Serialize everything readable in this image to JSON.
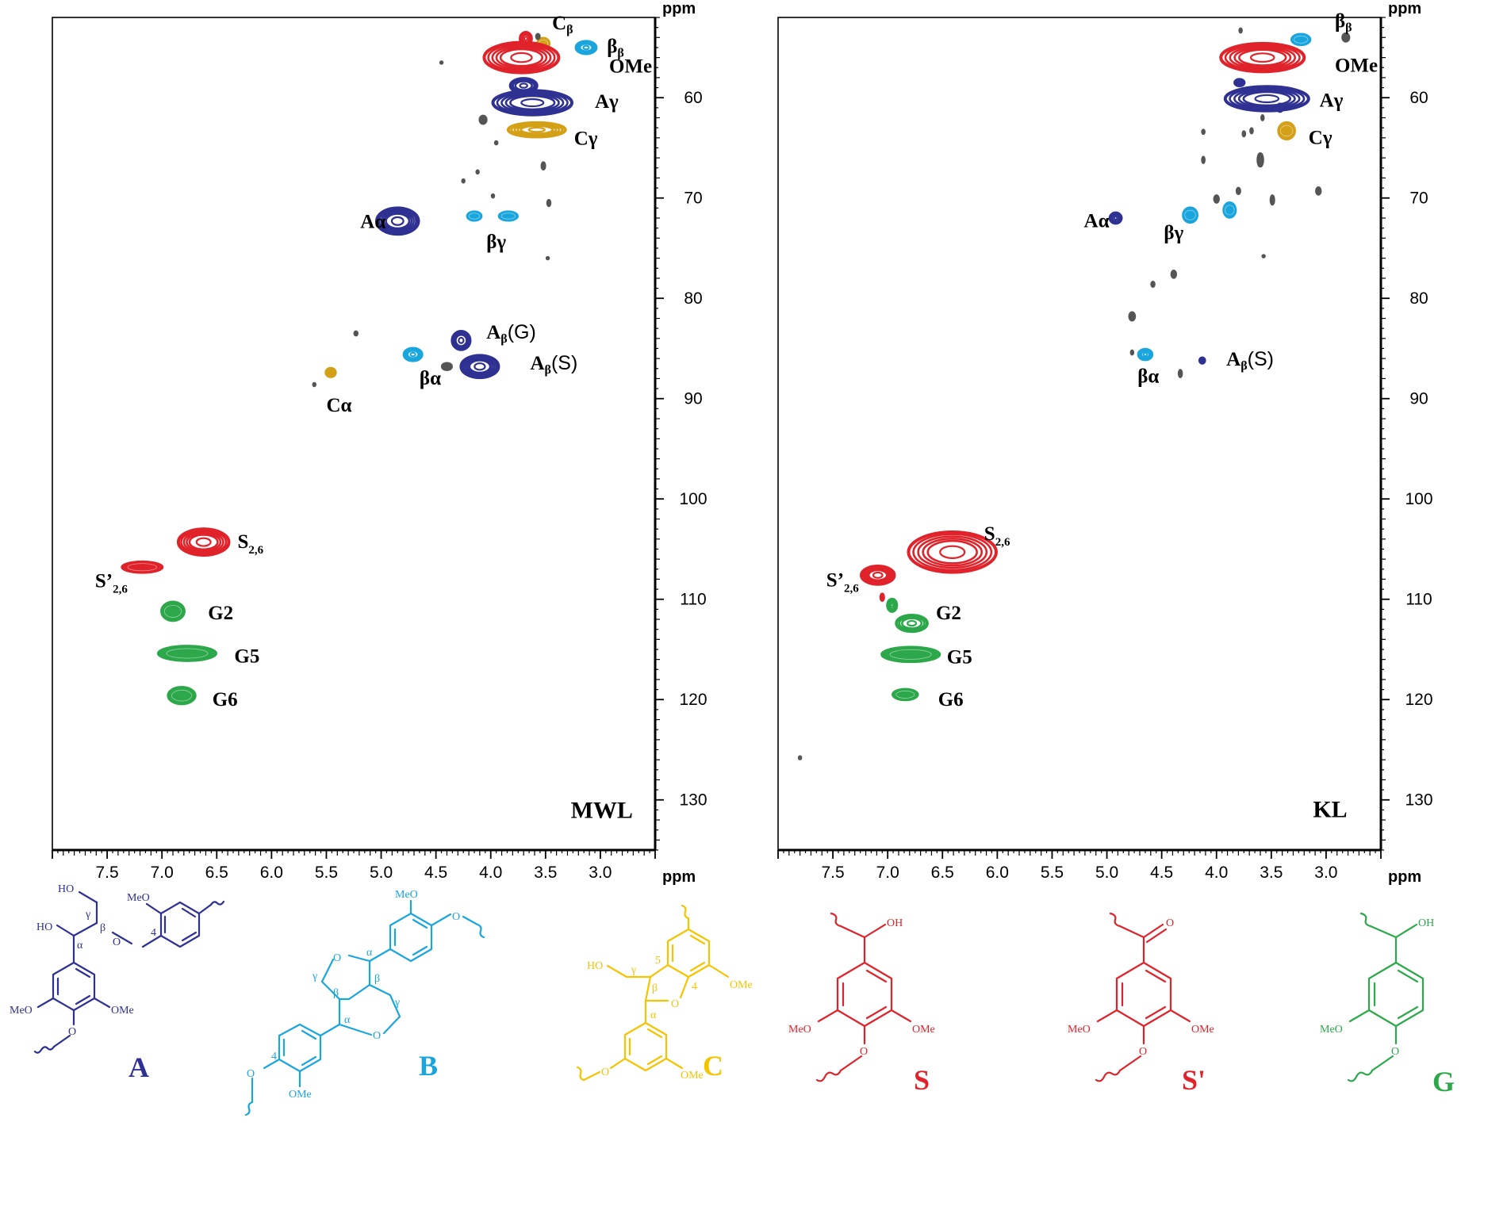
{
  "colors": {
    "A": "#2e3192",
    "B": "#1aa6dd",
    "C": "#d4a017",
    "C_struct": "#f5c400",
    "S": "#e0232b",
    "G": "#2ca84a",
    "other": "#555555"
  },
  "chart_data": [
    {
      "type": "scatter",
      "title": "MWL",
      "xlabel": "ppm",
      "ylabel": "ppm",
      "xlim": [
        8.0,
        2.5
      ],
      "ylim": [
        52,
        135
      ],
      "x_ticks": [
        "7.5",
        "7.0",
        "6.5",
        "6.0",
        "5.5",
        "5.0",
        "4.5",
        "4.0",
        "3.5",
        "3.0"
      ],
      "y_ticks": [
        "60",
        "70",
        "80",
        "90",
        "100",
        "110",
        "120",
        "130"
      ],
      "series": [
        {
          "name": "A",
          "color_key": "A",
          "points": [
            {
              "x": 4.85,
              "y": 72.3,
              "rx": 0.19,
              "ry": 1.3,
              "filled": false
            },
            {
              "x": 4.27,
              "y": 84.2,
              "rx": 0.08,
              "ry": 0.9,
              "filled": false
            },
            {
              "x": 4.1,
              "y": 86.8,
              "rx": 0.17,
              "ry": 1.1,
              "filled": false
            },
            {
              "x": 3.7,
              "y": 58.8,
              "rx": 0.12,
              "ry": 0.7,
              "filled": false
            },
            {
              "x": 3.62,
              "y": 60.5,
              "rx": 0.36,
              "ry": 1.2,
              "filled": false
            }
          ]
        },
        {
          "name": "B",
          "color_key": "B",
          "points": [
            {
              "x": 4.71,
              "y": 85.6,
              "rx": 0.08,
              "ry": 0.6,
              "filled": false
            },
            {
              "x": 4.15,
              "y": 71.8,
              "rx": 0.07,
              "ry": 0.5,
              "filled": true
            },
            {
              "x": 3.84,
              "y": 71.8,
              "rx": 0.09,
              "ry": 0.5,
              "filled": true
            },
            {
              "x": 3.13,
              "y": 55.0,
              "rx": 0.09,
              "ry": 0.6,
              "filled": false
            }
          ]
        },
        {
          "name": "C",
          "color_key": "C",
          "points": [
            {
              "x": 5.46,
              "y": 87.4,
              "rx": 0.05,
              "ry": 0.5,
              "filled": true
            },
            {
              "x": 3.52,
              "y": 54.6,
              "rx": 0.06,
              "ry": 0.6,
              "filled": true
            },
            {
              "x": 3.58,
              "y": 63.2,
              "rx": 0.26,
              "ry": 0.7,
              "filled": false
            }
          ]
        },
        {
          "name": "OMe",
          "color_key": "S",
          "points": [
            {
              "x": 3.72,
              "y": 56.0,
              "rx": 0.34,
              "ry": 1.5,
              "filled": false
            },
            {
              "x": 3.68,
              "y": 54.1,
              "rx": 0.05,
              "ry": 0.6,
              "filled": false
            }
          ]
        },
        {
          "name": "S",
          "color_key": "S",
          "points": [
            {
              "x": 6.62,
              "y": 104.3,
              "rx": 0.23,
              "ry": 1.3,
              "filled": false
            },
            {
              "x": 7.18,
              "y": 106.8,
              "rx": 0.19,
              "ry": 0.6,
              "filled": true
            }
          ]
        },
        {
          "name": "G",
          "color_key": "G",
          "points": [
            {
              "x": 6.9,
              "y": 111.2,
              "rx": 0.11,
              "ry": 1.0,
              "filled": true
            },
            {
              "x": 6.77,
              "y": 115.4,
              "rx": 0.27,
              "ry": 0.8,
              "filled": true
            },
            {
              "x": 6.82,
              "y": 119.6,
              "rx": 0.13,
              "ry": 0.9,
              "filled": true
            }
          ]
        },
        {
          "name": "other",
          "color_key": "other",
          "points": [
            {
              "x": 4.45,
              "y": 56.5,
              "rx": 0.012,
              "ry": 0.15,
              "filled": true
            },
            {
              "x": 4.07,
              "y": 62.2,
              "rx": 0.035,
              "ry": 0.45,
              "filled": true
            },
            {
              "x": 3.57,
              "y": 53.9,
              "rx": 0.02,
              "ry": 0.3,
              "filled": true
            },
            {
              "x": 3.95,
              "y": 64.5,
              "rx": 0.015,
              "ry": 0.2,
              "filled": true
            },
            {
              "x": 3.52,
              "y": 66.8,
              "rx": 0.02,
              "ry": 0.4,
              "filled": true
            },
            {
              "x": 4.12,
              "y": 67.4,
              "rx": 0.012,
              "ry": 0.2,
              "filled": true
            },
            {
              "x": 4.25,
              "y": 68.3,
              "rx": 0.012,
              "ry": 0.2,
              "filled": true
            },
            {
              "x": 3.98,
              "y": 69.8,
              "rx": 0.012,
              "ry": 0.2,
              "filled": true
            },
            {
              "x": 3.47,
              "y": 70.5,
              "rx": 0.018,
              "ry": 0.35,
              "filled": true
            },
            {
              "x": 3.48,
              "y": 76.0,
              "rx": 0.01,
              "ry": 0.15,
              "filled": true
            },
            {
              "x": 5.23,
              "y": 83.5,
              "rx": 0.018,
              "ry": 0.25,
              "filled": true
            },
            {
              "x": 4.4,
              "y": 86.8,
              "rx": 0.04,
              "ry": 0.3,
              "filled": false
            },
            {
              "x": 5.61,
              "y": 88.6,
              "rx": 0.012,
              "ry": 0.2,
              "filled": true
            }
          ]
        }
      ],
      "annotations": [
        {
          "text": "Cβ",
          "x": 3.44,
          "y": 53.2
        },
        {
          "text": "ββ",
          "x": 2.94,
          "y": 55.5
        },
        {
          "text": "OMe",
          "x": 2.92,
          "y": 57.5
        },
        {
          "text": "Aγ",
          "x": 3.05,
          "y": 61.0
        },
        {
          "text": "Cγ",
          "x": 3.24,
          "y": 64.7
        },
        {
          "text": "Aα",
          "x": 5.19,
          "y": 73.0
        },
        {
          "text": "βγ",
          "x": 4.04,
          "y": 75.0
        },
        {
          "text": "Aβ(G)",
          "x": 4.04,
          "y": 84.0
        },
        {
          "text": "Aβ(S)",
          "x": 3.64,
          "y": 87.1
        },
        {
          "text": "βα",
          "x": 4.65,
          "y": 88.6
        },
        {
          "text": "Cα",
          "x": 5.5,
          "y": 91.3
        },
        {
          "text": "S2,6",
          "x": 6.31,
          "y": 104.9
        },
        {
          "text": "S’2,6",
          "x": 7.61,
          "y": 108.8
        },
        {
          "text": "G2",
          "x": 6.58,
          "y": 112.0
        },
        {
          "text": "G5",
          "x": 6.34,
          "y": 116.3
        },
        {
          "text": "G6",
          "x": 6.54,
          "y": 120.6
        },
        {
          "text": "MWL",
          "x": 3.27,
          "y": 131.8
        }
      ]
    },
    {
      "type": "scatter",
      "title": "KL",
      "xlabel": "ppm",
      "ylabel": "ppm",
      "xlim": [
        8.0,
        2.5
      ],
      "ylim": [
        52,
        135
      ],
      "x_ticks": [
        "7.5",
        "7.0",
        "6.5",
        "6.0",
        "5.5",
        "5.0",
        "4.5",
        "4.0",
        "3.5",
        "3.0"
      ],
      "y_ticks": [
        "60",
        "70",
        "80",
        "90",
        "100",
        "110",
        "120",
        "130"
      ],
      "series": [
        {
          "name": "A",
          "color_key": "A",
          "points": [
            {
              "x": 4.92,
              "y": 72.0,
              "rx": 0.05,
              "ry": 0.5,
              "filled": false
            },
            {
              "x": 4.13,
              "y": 86.2,
              "rx": 0.03,
              "ry": 0.35,
              "filled": true
            },
            {
              "x": 3.79,
              "y": 58.5,
              "rx": 0.05,
              "ry": 0.4,
              "filled": true
            },
            {
              "x": 3.54,
              "y": 60.1,
              "rx": 0.38,
              "ry": 1.2,
              "filled": false
            },
            {
              "x": 3.42,
              "y": 61.0,
              "rx": 0.03,
              "ry": 0.45,
              "filled": true
            }
          ]
        },
        {
          "name": "B",
          "color_key": "B",
          "points": [
            {
              "x": 4.65,
              "y": 85.6,
              "rx": 0.06,
              "ry": 0.5,
              "filled": false
            },
            {
              "x": 4.24,
              "y": 71.7,
              "rx": 0.07,
              "ry": 0.8,
              "filled": true
            },
            {
              "x": 3.88,
              "y": 71.2,
              "rx": 0.06,
              "ry": 0.8,
              "filled": true
            },
            {
              "x": 3.23,
              "y": 54.2,
              "rx": 0.09,
              "ry": 0.6,
              "filled": true
            }
          ]
        },
        {
          "name": "C",
          "color_key": "C",
          "points": [
            {
              "x": 3.36,
              "y": 63.3,
              "rx": 0.08,
              "ry": 0.9,
              "filled": true
            }
          ]
        },
        {
          "name": "OMe",
          "color_key": "S",
          "points": [
            {
              "x": 3.58,
              "y": 56.0,
              "rx": 0.38,
              "ry": 1.4,
              "filled": false
            }
          ]
        },
        {
          "name": "S",
          "color_key": "S",
          "points": [
            {
              "x": 6.41,
              "y": 105.3,
              "rx": 0.4,
              "ry": 2.0,
              "filled": false
            },
            {
              "x": 7.09,
              "y": 107.6,
              "rx": 0.15,
              "ry": 0.9,
              "filled": false
            },
            {
              "x": 7.05,
              "y": 109.8,
              "rx": 0.02,
              "ry": 0.4,
              "filled": true
            }
          ]
        },
        {
          "name": "G",
          "color_key": "G",
          "points": [
            {
              "x": 6.96,
              "y": 110.6,
              "rx": 0.04,
              "ry": 0.6,
              "filled": false
            },
            {
              "x": 6.78,
              "y": 112.4,
              "rx": 0.14,
              "ry": 0.8,
              "filled": false
            },
            {
              "x": 6.79,
              "y": 115.5,
              "rx": 0.27,
              "ry": 0.8,
              "filled": true
            },
            {
              "x": 6.84,
              "y": 119.5,
              "rx": 0.12,
              "ry": 0.6,
              "filled": true
            }
          ]
        },
        {
          "name": "other",
          "color_key": "other",
          "points": [
            {
              "x": 3.78,
              "y": 53.3,
              "rx": 0.012,
              "ry": 0.25,
              "filled": true
            },
            {
              "x": 2.82,
              "y": 54.0,
              "rx": 0.035,
              "ry": 0.45,
              "filled": true
            },
            {
              "x": 3.58,
              "y": 62.0,
              "rx": 0.012,
              "ry": 0.3,
              "filled": true
            },
            {
              "x": 3.68,
              "y": 63.3,
              "rx": 0.015,
              "ry": 0.3,
              "filled": true
            },
            {
              "x": 3.75,
              "y": 63.6,
              "rx": 0.015,
              "ry": 0.3,
              "filled": true
            },
            {
              "x": 4.12,
              "y": 63.4,
              "rx": 0.015,
              "ry": 0.25,
              "filled": true
            },
            {
              "x": 3.6,
              "y": 66.2,
              "rx": 0.02,
              "ry": 0.6,
              "filled": false
            },
            {
              "x": 4.12,
              "y": 66.2,
              "rx": 0.015,
              "ry": 0.35,
              "filled": true
            },
            {
              "x": 3.07,
              "y": 69.3,
              "rx": 0.025,
              "ry": 0.4,
              "filled": true
            },
            {
              "x": 3.8,
              "y": 69.3,
              "rx": 0.02,
              "ry": 0.35,
              "filled": true
            },
            {
              "x": 4.0,
              "y": 70.1,
              "rx": 0.025,
              "ry": 0.4,
              "filled": true
            },
            {
              "x": 3.49,
              "y": 70.2,
              "rx": 0.02,
              "ry": 0.5,
              "filled": true
            },
            {
              "x": 3.57,
              "y": 75.8,
              "rx": 0.008,
              "ry": 0.15,
              "filled": true
            },
            {
              "x": 4.39,
              "y": 77.6,
              "rx": 0.025,
              "ry": 0.4,
              "filled": true
            },
            {
              "x": 4.58,
              "y": 78.6,
              "rx": 0.018,
              "ry": 0.3,
              "filled": true
            },
            {
              "x": 4.77,
              "y": 81.8,
              "rx": 0.03,
              "ry": 0.45,
              "filled": true
            },
            {
              "x": 4.77,
              "y": 85.4,
              "rx": 0.012,
              "ry": 0.25,
              "filled": true
            },
            {
              "x": 4.33,
              "y": 87.5,
              "rx": 0.018,
              "ry": 0.4,
              "filled": true
            },
            {
              "x": 7.8,
              "y": 125.8,
              "rx": 0.012,
              "ry": 0.2,
              "filled": true
            }
          ]
        }
      ],
      "annotations": [
        {
          "text": "ββ",
          "x": 2.92,
          "y": 53.0
        },
        {
          "text": "OMe",
          "x": 2.92,
          "y": 57.4
        },
        {
          "text": "Aγ",
          "x": 3.06,
          "y": 60.9
        },
        {
          "text": "Cγ",
          "x": 3.16,
          "y": 64.6
        },
        {
          "text": "Aα",
          "x": 5.21,
          "y": 72.9
        },
        {
          "text": "βγ",
          "x": 4.48,
          "y": 74.1
        },
        {
          "text": "Aβ(S)",
          "x": 3.91,
          "y": 86.7
        },
        {
          "text": "βα",
          "x": 4.72,
          "y": 88.4
        },
        {
          "text": "S2,6",
          "x": 6.12,
          "y": 104.1
        },
        {
          "text": "S’2,6",
          "x": 7.56,
          "y": 108.7
        },
        {
          "text": "G2",
          "x": 6.56,
          "y": 112.0
        },
        {
          "text": "G5",
          "x": 6.46,
          "y": 116.4
        },
        {
          "text": "G6",
          "x": 6.54,
          "y": 120.6
        },
        {
          "text": "KL",
          "x": 3.12,
          "y": 131.7
        }
      ]
    }
  ],
  "structures": {
    "A": {
      "name": "A",
      "labels": {
        "HO_top": "HO",
        "MeO_top": "MeO",
        "gamma": "γ",
        "beta": "β",
        "HO_mid": "HO",
        "alpha": "α",
        "O_link": "O",
        "four": "4",
        "MeO_left": "MeO",
        "OMe_right": "OMe",
        "O_bottom": "O"
      }
    },
    "B": {
      "name": "B",
      "labels": {
        "MeO_top": "MeO",
        "O_right": "O",
        "O_ring_left": "O",
        "alpha_top": "α",
        "gamma_left": "γ",
        "beta_left": "β",
        "beta_right": "β",
        "gamma_right": "γ",
        "alpha_bottom": "α",
        "O_ring_right": "O",
        "four": "4",
        "O_bottom": "O",
        "OMe_bottom": "OMe"
      }
    },
    "C": {
      "name": "C",
      "labels": {
        "HO": "HO",
        "gamma": "γ",
        "beta": "β",
        "alpha": "α",
        "five": "5",
        "four": "4",
        "O_ring": "O",
        "OMe_right": "OMe",
        "O_bottom": "O",
        "OMe_bottom": "OMe"
      }
    },
    "S": {
      "name": "S",
      "labels": {
        "OH": "OH",
        "MeO": "MeO",
        "OMe": "OMe",
        "O": "O"
      }
    },
    "Sp": {
      "name": "S'",
      "labels": {
        "O_top": "O",
        "MeO": "MeO",
        "OMe": "OMe",
        "O": "O"
      }
    },
    "G": {
      "name": "G",
      "labels": {
        "OH": "OH",
        "MeO": "MeO",
        "O": "O"
      }
    }
  }
}
